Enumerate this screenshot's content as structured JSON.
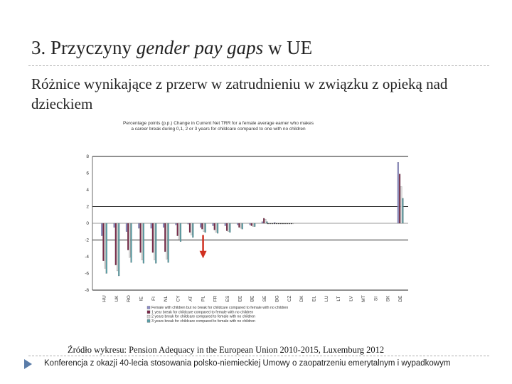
{
  "slide": {
    "title_prefix": "3. Przyczyny ",
    "title_italic": "gender pay gaps",
    "title_suffix": " w UE",
    "subtitle": "Różnice wynikające z przerw w zatrudnieniu w związku z opieką nad dzieckiem",
    "source": "Źródło wykresu: Pension Adequacy in the European Union 2010-2015, Luxemburg 2012",
    "footer": "Konferencja z okazji 40-lecia stosowania polsko-niemieckiej Umowy o zaopatrzeniu emerytalnym i wypadkowym"
  },
  "chart_data": {
    "type": "bar",
    "title": "Percentage points (p.p.) Change in Current Net TRR for a female average earner who makes a career break during 0,1, 2 or 3 years for childcare compared to one with no children",
    "categories": [
      "HU",
      "UK",
      "RO",
      "IE",
      "FI",
      "NL",
      "CY",
      "AT",
      "PL",
      "FR",
      "ES",
      "EE",
      "BE",
      "SE",
      "BG",
      "CZ",
      "DK",
      "EL",
      "LU",
      "LT",
      "LV",
      "MT",
      "SI",
      "SK",
      "DE"
    ],
    "ylim": [
      -8,
      8
    ],
    "yticks": [
      -8,
      -6,
      -4,
      -2,
      0,
      2,
      4,
      6,
      8
    ],
    "grid": "horizontal at 8, 2, -2, -8",
    "legend_position": "bottom-right",
    "series": [
      {
        "name": "Female with children but no break for childcare compared to female with no children",
        "color": "#8c8cc8",
        "values": [
          -1.5,
          -0.5,
          -1.0,
          -0.6,
          -0.6,
          -0.5,
          -0.2,
          -0.1,
          -0.5,
          -0.3,
          -0.3,
          -0.2,
          -0.2,
          0.2,
          0.1,
          0.0,
          0.0,
          0.0,
          0.0,
          0.0,
          0.0,
          0.0,
          0.0,
          0.0,
          7.3
        ]
      },
      {
        "name": "1 year break for childcare compared to female with no children",
        "color": "#7a2848",
        "values": [
          -4.5,
          -5.0,
          -3.2,
          -3.5,
          -3.5,
          -3.4,
          -1.5,
          -1.1,
          -0.7,
          -0.8,
          -0.9,
          -0.5,
          -0.3,
          0.6,
          0.0,
          0.0,
          0.0,
          0.0,
          0.0,
          0.0,
          0.0,
          0.0,
          0.0,
          0.0,
          5.9
        ]
      },
      {
        "name": "2 years break for childcare compared to female with no children",
        "color": "#dcdcdc",
        "values": [
          -5.4,
          -5.7,
          -4.1,
          -4.4,
          -4.4,
          -4.3,
          -1.9,
          -1.4,
          -1.0,
          -1.1,
          -1.0,
          -0.6,
          -0.4,
          0.5,
          0.0,
          0.0,
          0.0,
          0.0,
          0.0,
          0.0,
          0.0,
          0.0,
          0.0,
          0.0,
          4.4
        ]
      },
      {
        "name": "3 years break for childcare compared to female with no children",
        "color": "#5aa0a8",
        "values": [
          -6.0,
          -6.3,
          -4.7,
          -4.8,
          -4.8,
          -4.7,
          -2.2,
          -1.7,
          -1.1,
          -1.2,
          -1.1,
          -0.7,
          -0.4,
          0.2,
          0.0,
          0.0,
          0.0,
          0.0,
          0.0,
          0.0,
          0.0,
          0.0,
          0.0,
          0.0,
          3.0
        ]
      }
    ],
    "annotations": [
      {
        "type": "arrow",
        "color": "#d03020",
        "category": "PL",
        "direction": "down"
      }
    ]
  }
}
